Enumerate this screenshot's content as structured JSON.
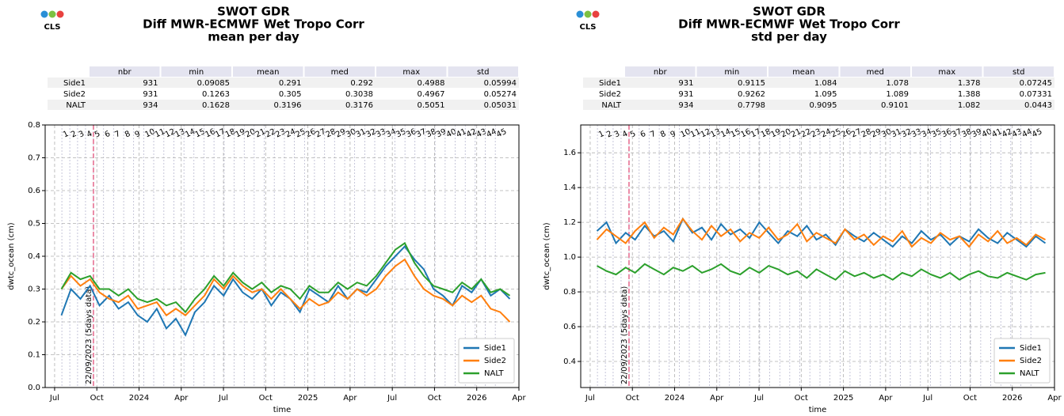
{
  "logo_text": "CLS",
  "cycles": {
    "labels": [
      1,
      2,
      3,
      4,
      5,
      6,
      7,
      8,
      9,
      10,
      11,
      12,
      13,
      14,
      15,
      16,
      17,
      18,
      19,
      20,
      21,
      22,
      23,
      24,
      25,
      26,
      27,
      28,
      29,
      30,
      31,
      32,
      33,
      34,
      35,
      36,
      37,
      38,
      39,
      40,
      41,
      42,
      43,
      44,
      45
    ],
    "x": [
      2023.543,
      2023.59,
      2023.636,
      2023.683,
      2023.73,
      2023.79,
      2023.849,
      2023.909,
      2023.968,
      2024.028,
      2024.087,
      2024.147,
      2024.206,
      2024.266,
      2024.325,
      2024.385,
      2024.444,
      2024.504,
      2024.563,
      2024.623,
      2024.682,
      2024.742,
      2024.801,
      2024.861,
      2024.92,
      2024.98,
      2025.039,
      2025.099,
      2025.158,
      2025.218,
      2025.277,
      2025.337,
      2025.396,
      2025.456,
      2025.515,
      2025.575,
      2025.634,
      2025.694,
      2025.753,
      2025.813,
      2025.872,
      2025.932,
      2025.991,
      2026.051,
      2026.11
    ]
  },
  "chart_data": [
    {
      "type": "line",
      "title": [
        "SWOT GDR",
        "Diff MWR-ECMWF Wet Tropo Corr",
        "mean per day"
      ],
      "table": {
        "columns": [
          "nbr",
          "min",
          "mean",
          "med",
          "max",
          "std"
        ],
        "rows": [
          [
            "Side1",
            931,
            0.09085,
            0.291,
            0.292,
            0.4988,
            0.05994
          ],
          [
            "Side2",
            931,
            0.1263,
            0.305,
            0.3038,
            0.4967,
            0.05274
          ],
          [
            "NALT",
            934,
            0.1628,
            0.3196,
            0.3176,
            0.5051,
            0.05031
          ]
        ]
      },
      "x_label": "time",
      "y_label": "dwtc_ocean (cm)",
      "annotation": {
        "text": "22/09/2023 (5days data)",
        "x": 2023.73
      },
      "xlim": [
        2023.444,
        2026.25
      ],
      "xticks": [
        {
          "value": 2023.5,
          "label": "Jul"
        },
        {
          "value": 2023.75,
          "label": "Oct"
        },
        {
          "value": 2024,
          "label": "2024"
        },
        {
          "value": 2024.25,
          "label": "Apr"
        },
        {
          "value": 2024.5,
          "label": "Jul"
        },
        {
          "value": 2024.75,
          "label": "Oct"
        },
        {
          "value": 2025,
          "label": "2025"
        },
        {
          "value": 2025.25,
          "label": "Apr"
        },
        {
          "value": 2025.5,
          "label": "Jul"
        },
        {
          "value": 2025.75,
          "label": "Oct"
        },
        {
          "value": 2026,
          "label": "2026"
        },
        {
          "value": 2026.25,
          "label": "Apr"
        }
      ],
      "ylim": [
        0,
        0.8
      ],
      "yticks": [
        {
          "value": 0,
          "label": "0.0"
        },
        0.1,
        0.2,
        0.3,
        0.4,
        0.5,
        0.6,
        0.7,
        0.8
      ],
      "grid": true,
      "legend": "lower right",
      "x": [
        2023.54,
        2023.597,
        2023.653,
        2023.71,
        2023.766,
        2023.823,
        2023.879,
        2023.936,
        2023.992,
        2024.049,
        2024.105,
        2024.162,
        2024.218,
        2024.275,
        2024.331,
        2024.388,
        2024.444,
        2024.501,
        2024.557,
        2024.614,
        2024.67,
        2024.727,
        2024.783,
        2024.84,
        2024.896,
        2024.953,
        2025.009,
        2025.066,
        2025.122,
        2025.179,
        2025.235,
        2025.292,
        2025.348,
        2025.405,
        2025.461,
        2025.518,
        2025.574,
        2025.631,
        2025.687,
        2025.744,
        2025.8,
        2025.857,
        2025.913,
        2025.97,
        2026.026,
        2026.083,
        2026.139,
        2026.196
      ],
      "series": [
        {
          "name": "Side1",
          "color": "#1f77b4",
          "values": [
            0.22,
            0.3,
            0.27,
            0.31,
            0.25,
            0.28,
            0.24,
            0.26,
            0.22,
            0.2,
            0.24,
            0.18,
            0.21,
            0.16,
            0.23,
            0.26,
            0.31,
            0.28,
            0.33,
            0.29,
            0.27,
            0.3,
            0.25,
            0.29,
            0.27,
            0.23,
            0.3,
            0.28,
            0.26,
            0.31,
            0.27,
            0.3,
            0.29,
            0.33,
            0.37,
            0.4,
            0.43,
            0.39,
            0.36,
            0.3,
            0.28,
            0.25,
            0.31,
            0.29,
            0.33,
            0.28,
            0.3,
            0.27
          ]
        },
        {
          "name": "Side2",
          "color": "#ff7f0e",
          "values": [
            0.3,
            0.34,
            0.31,
            0.33,
            0.29,
            0.27,
            0.26,
            0.28,
            0.24,
            0.25,
            0.26,
            0.22,
            0.24,
            0.22,
            0.25,
            0.28,
            0.33,
            0.3,
            0.34,
            0.31,
            0.29,
            0.3,
            0.27,
            0.3,
            0.27,
            0.24,
            0.27,
            0.25,
            0.26,
            0.29,
            0.27,
            0.3,
            0.28,
            0.3,
            0.34,
            0.37,
            0.39,
            0.34,
            0.3,
            0.28,
            0.27,
            0.25,
            0.28,
            0.26,
            0.28,
            0.24,
            0.23,
            0.2
          ]
        },
        {
          "name": "NALT",
          "color": "#2ca02c",
          "values": [
            0.3,
            0.35,
            0.33,
            0.34,
            0.3,
            0.3,
            0.28,
            0.3,
            0.27,
            0.26,
            0.27,
            0.25,
            0.26,
            0.23,
            0.27,
            0.3,
            0.34,
            0.31,
            0.35,
            0.32,
            0.3,
            0.32,
            0.29,
            0.31,
            0.3,
            0.27,
            0.31,
            0.29,
            0.29,
            0.32,
            0.3,
            0.32,
            0.31,
            0.34,
            0.38,
            0.42,
            0.44,
            0.38,
            0.34,
            0.31,
            0.3,
            0.29,
            0.32,
            0.3,
            0.33,
            0.29,
            0.3,
            0.28
          ]
        }
      ]
    },
    {
      "type": "line",
      "title": [
        "SWOT GDR",
        "Diff MWR-ECMWF Wet Tropo Corr",
        "std per day"
      ],
      "table": {
        "columns": [
          "nbr",
          "min",
          "mean",
          "med",
          "max",
          "std"
        ],
        "rows": [
          [
            "Side1",
            931,
            0.9115,
            1.084,
            1.078,
            1.378,
            0.07245
          ],
          [
            "Side2",
            931,
            0.9262,
            1.095,
            1.089,
            1.388,
            0.07331
          ],
          [
            "NALT",
            934,
            0.7798,
            0.9095,
            0.9101,
            1.082,
            0.0443
          ]
        ]
      },
      "x_label": "time",
      "y_label": "dwtc_ocean (cm)",
      "annotation": {
        "text": "22/09/2023 (5days data)",
        "x": 2023.73
      },
      "xlim": [
        2023.444,
        2026.25
      ],
      "xticks": [
        {
          "value": 2023.5,
          "label": "Jul"
        },
        {
          "value": 2023.75,
          "label": "Oct"
        },
        {
          "value": 2024,
          "label": "2024"
        },
        {
          "value": 2024.25,
          "label": "Apr"
        },
        {
          "value": 2024.5,
          "label": "Jul"
        },
        {
          "value": 2024.75,
          "label": "Oct"
        },
        {
          "value": 2025,
          "label": "2025"
        },
        {
          "value": 2025.25,
          "label": "Apr"
        },
        {
          "value": 2025.5,
          "label": "Jul"
        },
        {
          "value": 2025.75,
          "label": "Oct"
        },
        {
          "value": 2026,
          "label": "2026"
        },
        {
          "value": 2026.25,
          "label": "Apr"
        }
      ],
      "ylim": [
        0.25,
        1.76
      ],
      "yticks": [
        0.4,
        0.6,
        0.8,
        {
          "value": 1,
          "label": "1.0"
        },
        1.2,
        1.4,
        1.6
      ],
      "grid": true,
      "legend": "lower right",
      "x": [
        2023.54,
        2023.597,
        2023.653,
        2023.71,
        2023.766,
        2023.823,
        2023.879,
        2023.936,
        2023.992,
        2024.049,
        2024.105,
        2024.162,
        2024.218,
        2024.275,
        2024.331,
        2024.388,
        2024.444,
        2024.501,
        2024.557,
        2024.614,
        2024.67,
        2024.727,
        2024.783,
        2024.84,
        2024.896,
        2024.953,
        2025.009,
        2025.066,
        2025.122,
        2025.179,
        2025.235,
        2025.292,
        2025.348,
        2025.405,
        2025.461,
        2025.518,
        2025.574,
        2025.631,
        2025.687,
        2025.744,
        2025.8,
        2025.857,
        2025.913,
        2025.97,
        2026.026,
        2026.083,
        2026.139,
        2026.196
      ],
      "series": [
        {
          "name": "Side1",
          "color": "#1f77b4",
          "values": [
            1.15,
            1.2,
            1.08,
            1.14,
            1.1,
            1.18,
            1.12,
            1.15,
            1.09,
            1.22,
            1.14,
            1.17,
            1.1,
            1.19,
            1.13,
            1.16,
            1.11,
            1.2,
            1.14,
            1.08,
            1.15,
            1.12,
            1.18,
            1.1,
            1.13,
            1.07,
            1.16,
            1.12,
            1.09,
            1.14,
            1.1,
            1.06,
            1.12,
            1.08,
            1.15,
            1.1,
            1.13,
            1.07,
            1.12,
            1.09,
            1.16,
            1.11,
            1.08,
            1.14,
            1.1,
            1.06,
            1.12,
            1.08
          ]
        },
        {
          "name": "Side2",
          "color": "#ff7f0e",
          "values": [
            1.1,
            1.16,
            1.12,
            1.08,
            1.15,
            1.2,
            1.11,
            1.17,
            1.13,
            1.22,
            1.15,
            1.1,
            1.18,
            1.12,
            1.16,
            1.09,
            1.14,
            1.11,
            1.17,
            1.1,
            1.13,
            1.19,
            1.09,
            1.14,
            1.11,
            1.08,
            1.16,
            1.1,
            1.13,
            1.07,
            1.12,
            1.09,
            1.15,
            1.06,
            1.11,
            1.08,
            1.14,
            1.1,
            1.12,
            1.06,
            1.13,
            1.09,
            1.15,
            1.08,
            1.11,
            1.07,
            1.13,
            1.1
          ]
        },
        {
          "name": "NALT",
          "color": "#2ca02c",
          "values": [
            0.95,
            0.92,
            0.9,
            0.94,
            0.91,
            0.96,
            0.93,
            0.9,
            0.94,
            0.92,
            0.95,
            0.91,
            0.93,
            0.96,
            0.92,
            0.9,
            0.94,
            0.91,
            0.95,
            0.93,
            0.9,
            0.92,
            0.88,
            0.93,
            0.9,
            0.87,
            0.92,
            0.89,
            0.91,
            0.88,
            0.9,
            0.87,
            0.91,
            0.89,
            0.93,
            0.9,
            0.88,
            0.91,
            0.87,
            0.9,
            0.92,
            0.89,
            0.88,
            0.91,
            0.89,
            0.87,
            0.9,
            0.91
          ]
        }
      ]
    }
  ]
}
